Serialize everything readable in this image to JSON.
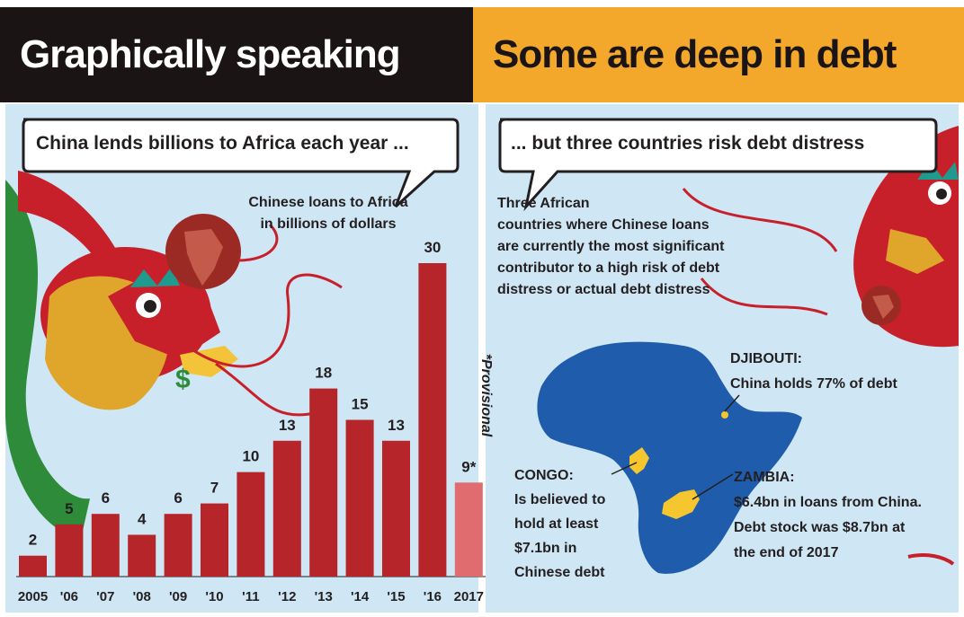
{
  "headers": {
    "left": "Graphically speaking",
    "right": "Some are deep in debt"
  },
  "bubbles": {
    "left": "China lends billions to Africa each year ...",
    "right": "... but three countries risk debt distress"
  },
  "chart_data": {
    "type": "bar",
    "title": "Chinese loans to Africa in billions of dollars",
    "title_lines": [
      "Chinese loans to Africa",
      "in billions of dollars"
    ],
    "categories": [
      "2005",
      "'06",
      "'07",
      "'08",
      "'09",
      "'10",
      "'11",
      "'12",
      "'13",
      "'14",
      "'15",
      "'16",
      "2017"
    ],
    "values": [
      2,
      5,
      6,
      4,
      6,
      7,
      10,
      13,
      18,
      15,
      13,
      30,
      9
    ],
    "value_labels": [
      "2",
      "5",
      "6",
      "4",
      "6",
      "7",
      "10",
      "13",
      "18",
      "15",
      "13",
      "30",
      "9*"
    ],
    "provisional_index": 12,
    "note": "*Provisional",
    "ylim": [
      0,
      30
    ],
    "colors": {
      "bar": "#b5252a",
      "provisional": "#e06c6f"
    },
    "grid": false,
    "legend": "none"
  },
  "right_panel": {
    "description_lines": [
      "Three African",
      "countries where Chinese loans",
      "are currently the most significant",
      "contributor to a high risk of debt",
      "distress or actual debt distress"
    ],
    "countries": [
      {
        "name": "DJIBOUTI:",
        "lines": [
          "China holds 77% of debt"
        ]
      },
      {
        "name": "CONGO:",
        "lines": [
          "Is believed to",
          "hold at least",
          "$7.1bn in",
          "Chinese debt"
        ]
      },
      {
        "name": "ZAMBIA:",
        "lines": [
          "$6.4bn in loans from China.",
          "Debt stock was $8.7bn at",
          "the end of 2017"
        ]
      }
    ],
    "colors": {
      "map": "#1f5cab",
      "highlight": "#f6c62e"
    }
  },
  "colors": {
    "background": "#cfe6f4",
    "dragon_red": "#c8202a",
    "dragon_gold": "#e0a52b",
    "dragon_green": "#2e8b3a"
  }
}
